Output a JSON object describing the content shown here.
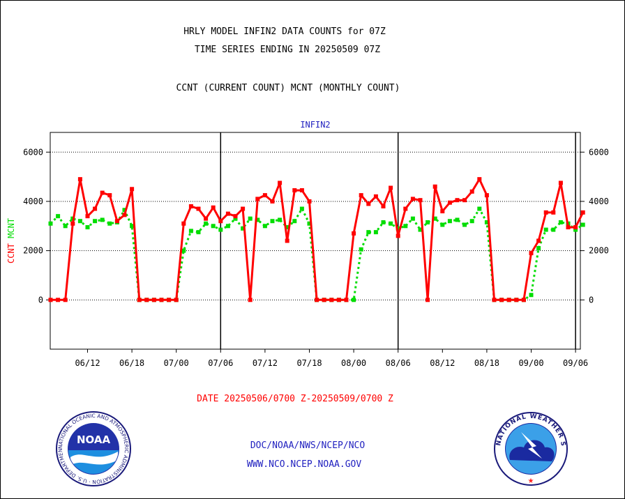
{
  "header": {
    "title1": "HRLY MODEL INFIN2 DATA COUNTS for 07Z",
    "title2": "TIME SERIES ENDING IN 20250509 07Z",
    "subtitle": "CCNT (CURRENT COUNT) MCNT (MONTHLY COUNT)"
  },
  "footer": {
    "date_range": "DATE 20250506/0700 Z-20250509/0700 Z",
    "org": "DOC/NOAA/NWS/NCEP/NCO",
    "url": "WWW.NCO.NCEP.NOAA.GOV"
  },
  "logos": {
    "noaa_text": "NOAA",
    "noaa_ring": "NATIONAL OCEANIC AND ATMOSPHERIC ADMINISTRATION · U.S. DEPARTMENT OF COMMERCE",
    "nws_ring": "NATIONAL WEATHER SERVICE"
  },
  "colors": {
    "ccnt": "#ff0000",
    "mcnt": "#00dd00",
    "panel_label": "#1f1fbf"
  },
  "chart_data": {
    "type": "line",
    "panel_label": "INFIN2",
    "ylabel_parts": [
      {
        "text": "CCNT",
        "color": "#ff0000"
      },
      {
        "text": "MCNT",
        "color": "#00dd00"
      }
    ],
    "ylim": [
      -2000,
      6800
    ],
    "yticks": [
      0,
      2000,
      4000,
      6000
    ],
    "ytick_labels": [
      "0",
      "2000",
      "4000",
      "6000"
    ],
    "grid": "horizontal dotted",
    "x_tick_labels": [
      "06/12",
      "06/18",
      "07/00",
      "07/06",
      "07/12",
      "07/18",
      "08/00",
      "08/06",
      "08/12",
      "08/18",
      "09/00",
      "09/06"
    ],
    "x_tick_index": [
      5,
      11,
      17,
      23,
      29,
      35,
      41,
      47,
      53,
      59,
      65,
      71
    ],
    "day_boundary_index": [
      23,
      47,
      71
    ],
    "x_count": 73,
    "series": [
      {
        "name": "CCNT",
        "color": "#ff0000",
        "values": [
          0,
          0,
          0,
          3100,
          4900,
          3400,
          3700,
          4350,
          4250,
          3200,
          3450,
          4500,
          0,
          0,
          0,
          0,
          0,
          0,
          3100,
          3800,
          3700,
          3300,
          3750,
          3200,
          3500,
          3400,
          3700,
          0,
          4100,
          4250,
          4000,
          4750,
          2400,
          4450,
          4450,
          4000,
          0,
          0,
          0,
          0,
          0,
          2700,
          4250,
          3900,
          4200,
          3800,
          4550,
          2600,
          3700,
          4100,
          4050,
          0,
          4600,
          3600,
          3950,
          4050,
          4050,
          4400,
          4900,
          4250,
          0,
          0,
          0,
          0,
          0,
          1900,
          2400,
          3550,
          3550,
          4750,
          2950,
          2950,
          3550
        ]
      },
      {
        "name": "MCNT",
        "color": "#00dd00",
        "values": [
          3100,
          3400,
          3000,
          3300,
          3200,
          2950,
          3200,
          3250,
          3100,
          3150,
          3650,
          3000,
          0,
          0,
          0,
          0,
          0,
          0,
          2000,
          2800,
          2750,
          3100,
          3000,
          2850,
          3000,
          3300,
          2900,
          3300,
          3250,
          3000,
          3200,
          3250,
          2950,
          3200,
          3700,
          3100,
          0,
          0,
          0,
          0,
          0,
          0,
          2050,
          2750,
          2750,
          3150,
          3100,
          2900,
          3000,
          3300,
          2850,
          3150,
          3300,
          3050,
          3200,
          3250,
          3050,
          3200,
          3700,
          3150,
          0,
          0,
          0,
          0,
          0,
          200,
          2100,
          2850,
          2850,
          3150,
          3100,
          2850,
          3050
        ]
      }
    ]
  }
}
